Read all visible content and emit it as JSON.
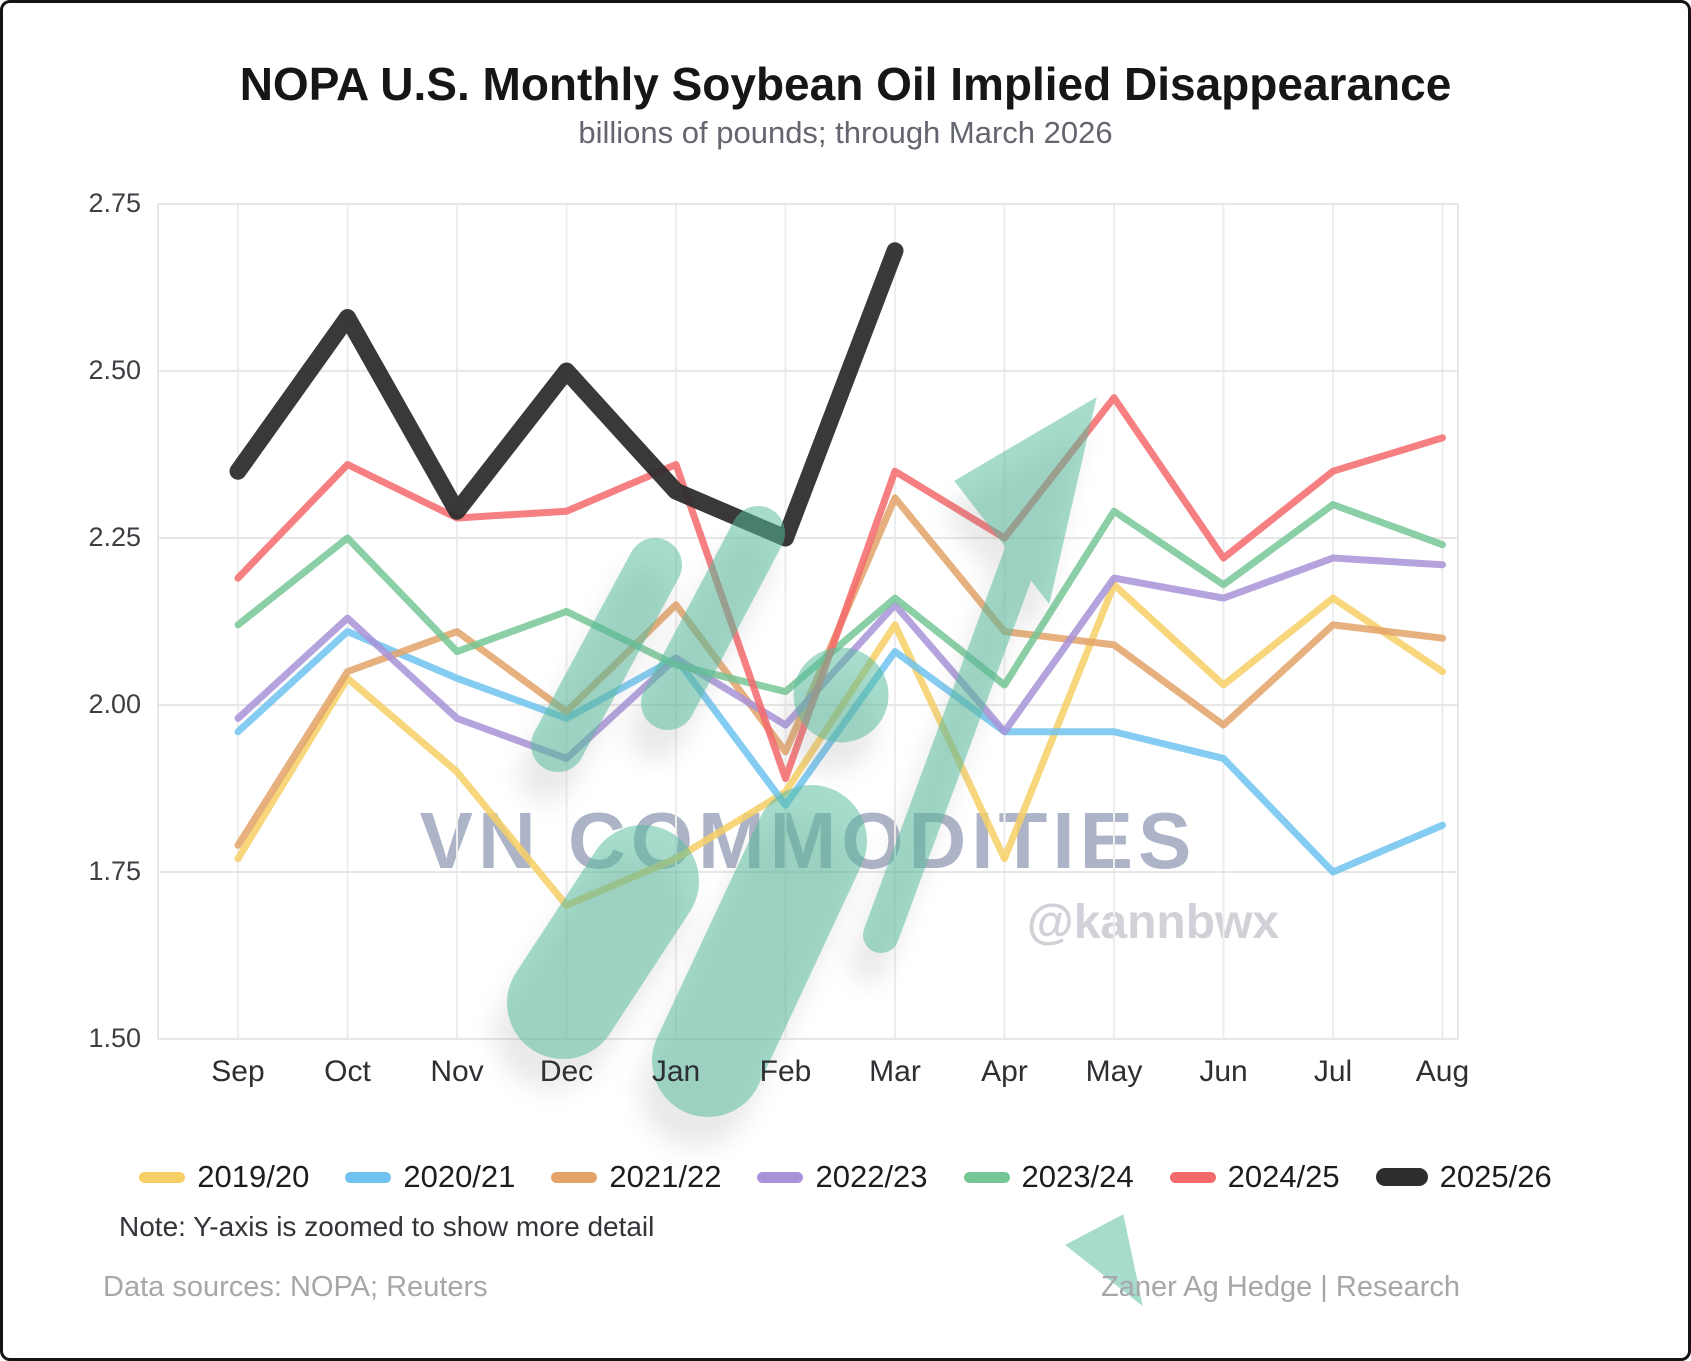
{
  "header": {
    "title": "NOPA U.S. Monthly Soybean Oil Implied Disappearance",
    "subtitle": "billions of pounds; through March 2026"
  },
  "watermark": {
    "brand": "VN COMMODITIES",
    "handle": "@kannbwx"
  },
  "note": "Note: Y-axis is zoomed to show more detail",
  "footer": {
    "left": "Data sources: NOPA; Reuters",
    "right": "Zaner Ag Hedge | Research"
  },
  "colors": {
    "overlay_teal": "#57BD9E",
    "grid": "#e7e7e7",
    "grid_vertical": "#ededed",
    "axis_text": "#3d3f44",
    "watermark_brand": "#7C86A4",
    "watermark_handle": "#CED0D6"
  },
  "chart_data": {
    "type": "line",
    "title": "NOPA U.S. Monthly Soybean Oil Implied Disappearance",
    "subtitle": "billions of pounds; through March 2026",
    "ylabel": "billions of pounds",
    "xlabel": "",
    "categories": [
      "Sep",
      "Oct",
      "Nov",
      "Dec",
      "Jan",
      "Feb",
      "Mar",
      "Apr",
      "May",
      "Jun",
      "Jul",
      "Aug"
    ],
    "ylim": [
      1.5,
      2.75
    ],
    "yticks": [
      2.75,
      2.5,
      2.25,
      2.0,
      1.75,
      1.5
    ],
    "grid": true,
    "legend_position": "bottom",
    "series": [
      {
        "name": "2019/20",
        "color": "#F6CF65",
        "width": 7,
        "values": [
          1.77,
          2.04,
          1.9,
          1.7,
          1.77,
          1.87,
          2.12,
          1.77,
          2.18,
          2.03,
          2.16,
          2.05
        ]
      },
      {
        "name": "2020/21",
        "color": "#6FC3EE",
        "width": 7,
        "values": [
          1.96,
          2.11,
          2.04,
          1.98,
          2.07,
          1.85,
          2.08,
          1.96,
          1.96,
          1.92,
          1.75,
          1.82
        ]
      },
      {
        "name": "2021/22",
        "color": "#E3A369",
        "width": 7,
        "values": [
          1.79,
          2.05,
          2.11,
          1.99,
          2.15,
          1.93,
          2.31,
          2.11,
          2.09,
          1.97,
          2.12,
          2.1
        ]
      },
      {
        "name": "2022/23",
        "color": "#A893D8",
        "width": 7,
        "values": [
          1.98,
          2.13,
          1.98,
          1.92,
          2.07,
          1.97,
          2.15,
          1.96,
          2.19,
          2.16,
          2.22,
          2.21
        ]
      },
      {
        "name": "2023/24",
        "color": "#76C795",
        "width": 7,
        "values": [
          2.12,
          2.25,
          2.08,
          2.14,
          2.06,
          2.02,
          2.16,
          2.03,
          2.29,
          2.18,
          2.3,
          2.24
        ]
      },
      {
        "name": "2024/25",
        "color": "#F4696B",
        "width": 7,
        "values": [
          2.19,
          2.36,
          2.28,
          2.29,
          2.36,
          1.89,
          2.35,
          2.25,
          2.46,
          2.22,
          2.35,
          2.4
        ]
      },
      {
        "name": "2025/26",
        "color": "#2E2E2E",
        "width": 17,
        "values": [
          2.35,
          2.58,
          2.29,
          2.5,
          2.32,
          2.25,
          2.68,
          null,
          null,
          null,
          null,
          null
        ]
      }
    ]
  }
}
